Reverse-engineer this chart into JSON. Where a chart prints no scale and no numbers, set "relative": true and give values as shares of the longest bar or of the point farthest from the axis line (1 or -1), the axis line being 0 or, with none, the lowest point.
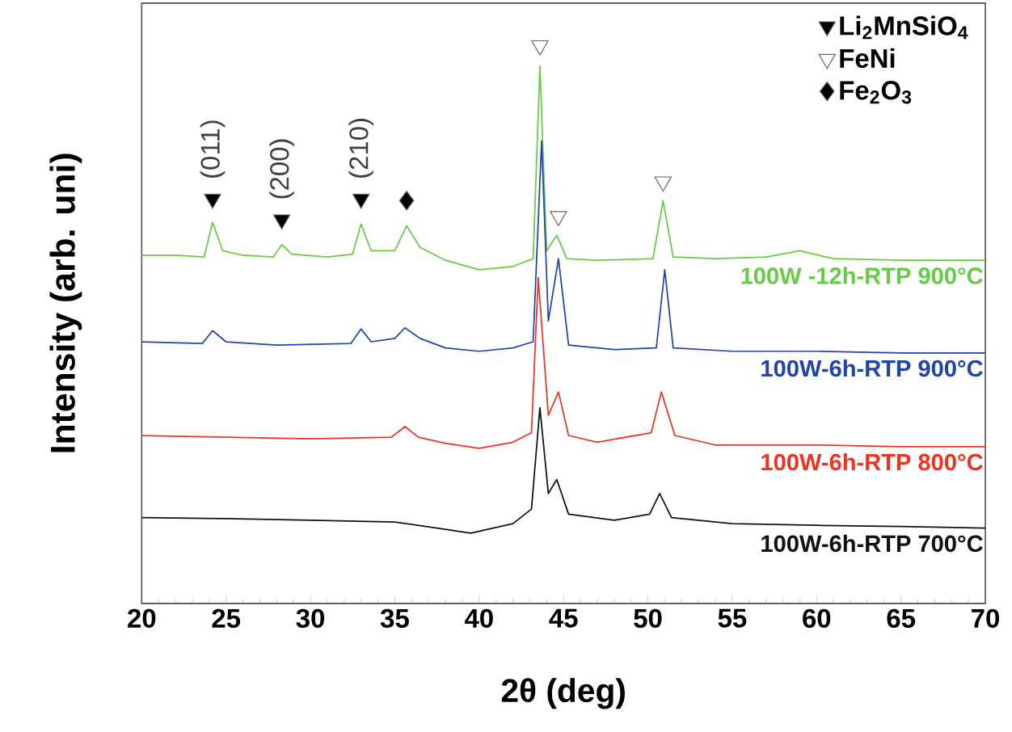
{
  "chart_data": {
    "type": "line",
    "relative": true,
    "xlabel": "2θ (deg)",
    "ylabel": "Intensity (arb. uni)",
    "xlim": [
      20,
      70
    ],
    "xticks": [
      20,
      25,
      30,
      35,
      40,
      45,
      50,
      55,
      60,
      65,
      70
    ],
    "legend": "top right",
    "series": [
      {
        "name": "100W -12h-RTP 900°C",
        "color": "#66cc44",
        "x": [
          20,
          22,
          23.7,
          24.2,
          24.8,
          26,
          27.8,
          28.3,
          28.9,
          31,
          32.5,
          33,
          33.6,
          35,
          35.7,
          36.5,
          38,
          40,
          42,
          43.2,
          43.6,
          44.0,
          44.6,
          45.2,
          47,
          50.3,
          50.9,
          51.5,
          54,
          57,
          59,
          61,
          65,
          70
        ],
        "values": [
          0.624,
          0.624,
          0.621,
          0.683,
          0.632,
          0.624,
          0.621,
          0.643,
          0.626,
          0.621,
          0.626,
          0.68,
          0.632,
          0.632,
          0.677,
          0.638,
          0.615,
          0.598,
          0.604,
          0.618,
          0.963,
          0.632,
          0.66,
          0.618,
          0.615,
          0.618,
          0.722,
          0.621,
          0.618,
          0.621,
          0.632,
          0.618,
          0.615,
          0.615
        ]
      },
      {
        "name": "100W-6h-RTP 900°C",
        "color": "#2244aa",
        "x": [
          20,
          23.6,
          24.2,
          25,
          28,
          32.4,
          33,
          33.6,
          35,
          35.6,
          36.5,
          38,
          40,
          42,
          43.2,
          43.7,
          44.1,
          44.7,
          45.3,
          48,
          50.5,
          51.0,
          51.5,
          55,
          60,
          65,
          70
        ],
        "values": [
          0.469,
          0.466,
          0.489,
          0.469,
          0.463,
          0.466,
          0.492,
          0.469,
          0.475,
          0.494,
          0.475,
          0.458,
          0.452,
          0.458,
          0.469,
          0.829,
          0.506,
          0.618,
          0.463,
          0.455,
          0.458,
          0.598,
          0.458,
          0.452,
          0.452,
          0.449,
          0.449
        ]
      },
      {
        "name": "100W-6h-RTP 800°C",
        "color": "#ee3322",
        "x": [
          20,
          25,
          30,
          34.8,
          35.6,
          36.4,
          38,
          40,
          42,
          43.1,
          43.5,
          44.1,
          44.7,
          45.3,
          47,
          50.2,
          50.8,
          51.6,
          54,
          60,
          65,
          70
        ],
        "values": [
          0.301,
          0.298,
          0.295,
          0.298,
          0.317,
          0.298,
          0.287,
          0.278,
          0.289,
          0.306,
          0.584,
          0.337,
          0.379,
          0.301,
          0.289,
          0.306,
          0.379,
          0.301,
          0.284,
          0.284,
          0.281,
          0.281
        ]
      },
      {
        "name": "100W-6h-RTP 700°C",
        "color": "#111111",
        "x": [
          20,
          25,
          30,
          35,
          37.5,
          39.5,
          42,
          43.1,
          43.6,
          44.1,
          44.6,
          45.3,
          48,
          50.1,
          50.7,
          51.4,
          55,
          60,
          65,
          70
        ],
        "values": [
          0.154,
          0.152,
          0.149,
          0.146,
          0.135,
          0.126,
          0.143,
          0.169,
          0.351,
          0.197,
          0.222,
          0.16,
          0.149,
          0.16,
          0.197,
          0.154,
          0.143,
          0.14,
          0.138,
          0.135
        ]
      },
      {
        "name": "Li$_{2}$MnSiO$_{4}$",
        "type": "scatter",
        "marker": "triangle",
        "color": "#000000",
        "x": [
          24.2,
          28.3,
          33.0
        ],
        "values": [
          0.725,
          0.688,
          0.725
        ]
      },
      {
        "name": "FeNi",
        "type": "scatter",
        "marker": "triangle",
        "color": "#ffffff",
        "x": [
          43.6,
          44.7,
          50.9
        ],
        "values": [
          1.0,
          0.694,
          0.756
        ]
      },
      {
        "name": "Fe$_{2}$O$_{3}$",
        "type": "scatter",
        "marker": "diamond",
        "color": "#000000",
        "x": [
          35.7
        ],
        "values": [
          0.722
        ]
      }
    ],
    "annotations": [
      "(011)",
      "(200)",
      "(210)"
    ]
  }
}
